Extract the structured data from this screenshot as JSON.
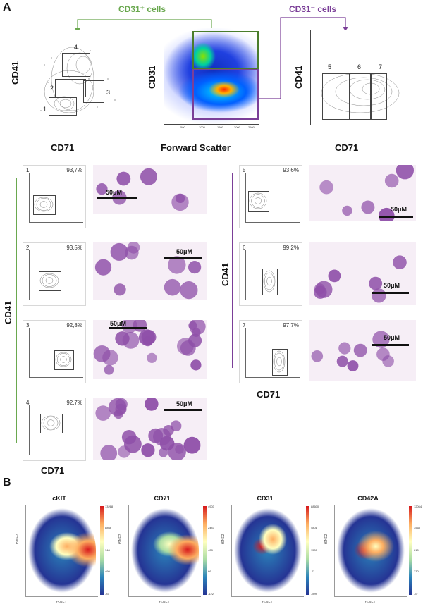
{
  "panelA": {
    "letter": "A",
    "cd31pos": "CD31⁺ cells",
    "cd31neg": "CD31⁻ cells",
    "leftPlot": {
      "ylabel": "CD41",
      "xlabel": "CD71",
      "gates": [
        "1",
        "2",
        "3",
        "4"
      ]
    },
    "middlePlot": {
      "ylabel": "CD31",
      "xlabel": "Forward Scatter",
      "xticks": [
        "500",
        "1000",
        "1500",
        "2000",
        "2500"
      ]
    },
    "rightPlot": {
      "ylabel": "CD41",
      "xlabel": "CD71",
      "gates": [
        "5",
        "6",
        "7"
      ]
    },
    "leftGroup": {
      "ylabel": "CD41",
      "xlabel": "CD71"
    },
    "rightGroup": {
      "ylabel": "CD41",
      "xlabel": "CD71"
    },
    "subplots": [
      {
        "num": "1",
        "pct": "93,7%"
      },
      {
        "num": "2",
        "pct": "93,5%"
      },
      {
        "num": "3",
        "pct": "92,8%"
      },
      {
        "num": "4",
        "pct": "92,7%"
      },
      {
        "num": "5",
        "pct": "93,6%"
      },
      {
        "num": "6",
        "pct": "99,2%"
      },
      {
        "num": "7",
        "pct": "97,7%"
      }
    ],
    "scale": "50μM"
  },
  "panelB": {
    "letter": "B",
    "maps": [
      {
        "title": "cKIT",
        "ticks": [
          "13268",
          "8868",
          "748",
          "499",
          "-87"
        ]
      },
      {
        "title": "CD71",
        "ticks": [
          "4903",
          "2447",
          "408",
          "66",
          "-122"
        ]
      },
      {
        "title": "CD31",
        "ticks": [
          "88600",
          "4801",
          "1500",
          "-71",
          "-399"
        ]
      },
      {
        "title": "CD42A",
        "ticks": [
          "12064",
          "3568",
          "610",
          "230",
          "-37"
        ]
      }
    ],
    "xlabel": "tSNE1",
    "ylabel": "tSNE2"
  },
  "colors": {
    "green": "#6aa84f",
    "purple": "#7b3f98",
    "cellPurple": "#8e4fa8"
  }
}
